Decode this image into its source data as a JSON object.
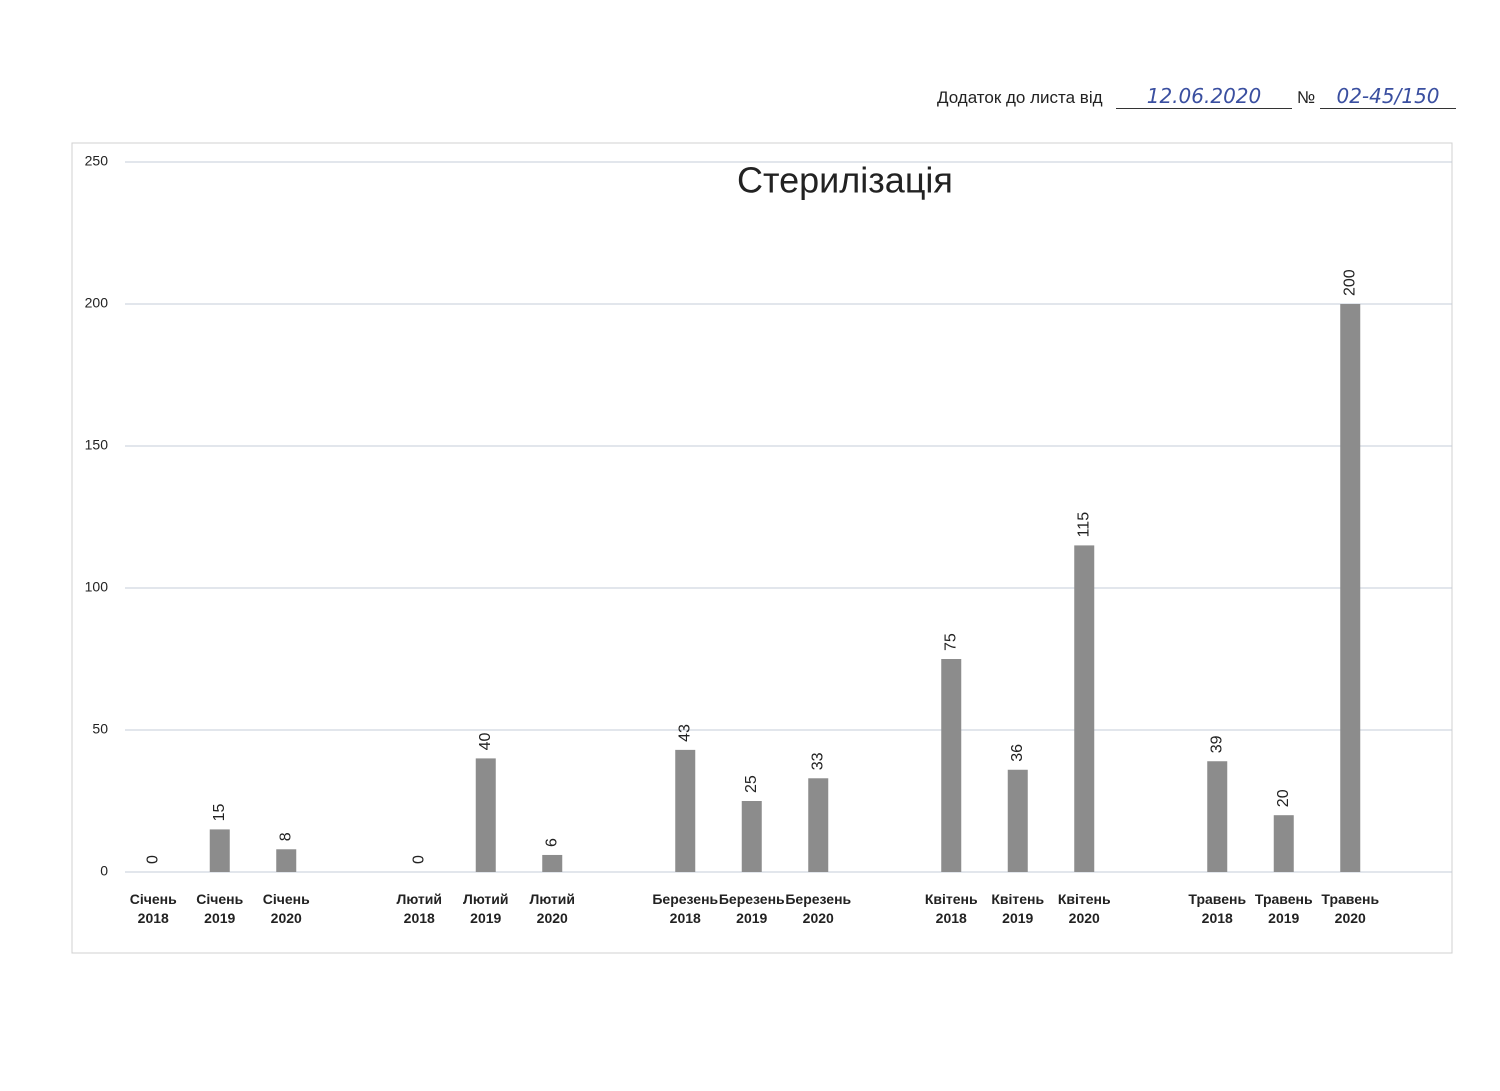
{
  "header": {
    "text": "Додаток до листа від",
    "date": "12.06.2020",
    "number_sign": "№",
    "number": "02-45/150"
  },
  "chart_data": {
    "type": "bar",
    "title": "Стерилізація",
    "categories": [
      "Січень\n2018",
      "Січень\n2019",
      "Січень\n2020",
      null,
      "Лютий\n2018",
      "Лютий\n2019",
      "Лютий\n2020",
      null,
      "Березень\n2018",
      "Березень\n2019",
      "Березень\n2020",
      null,
      "Квітень\n2018",
      "Квітень\n2019",
      "Квітень\n2020",
      null,
      "Травень\n2018",
      "Травень\n2019",
      "Травень\n2020"
    ],
    "values": [
      0,
      15,
      8,
      null,
      0,
      40,
      6,
      null,
      43,
      25,
      33,
      null,
      75,
      36,
      115,
      null,
      39,
      20,
      200
    ],
    "color": "#8c8c8c",
    "ylim": [
      0,
      250
    ],
    "yticks": [
      0,
      50,
      100,
      150,
      200,
      250
    ],
    "grid": true
  }
}
